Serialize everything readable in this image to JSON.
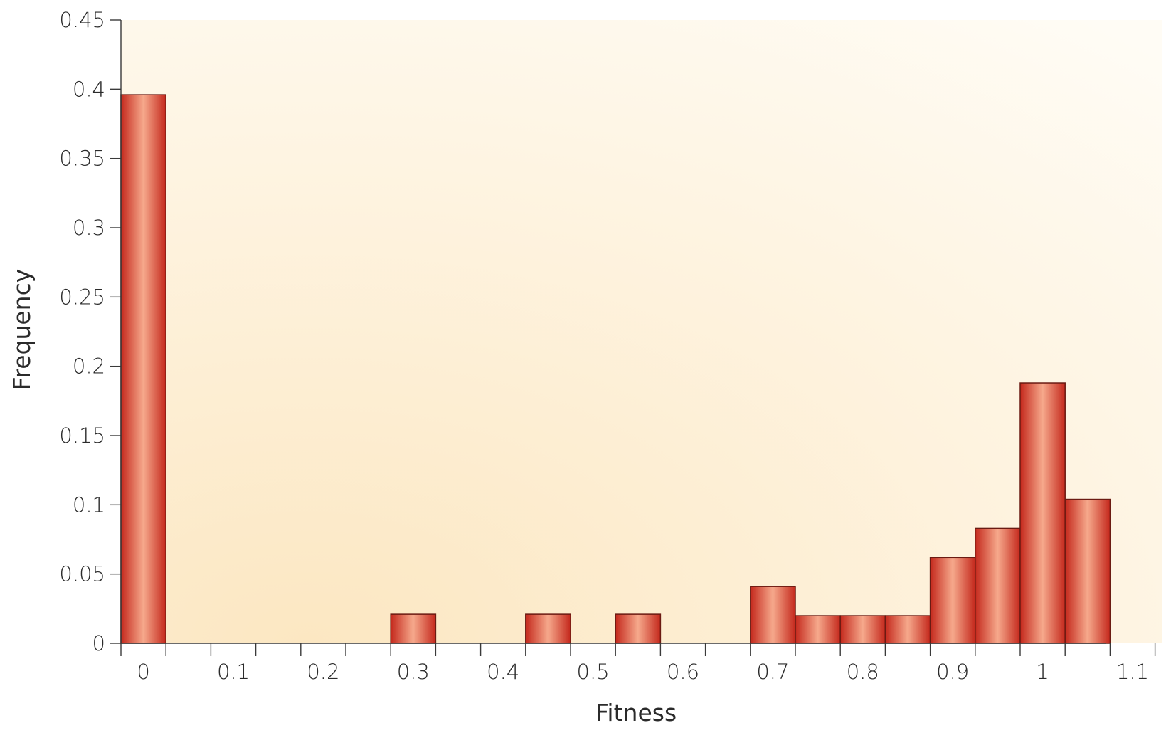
{
  "chart_data": {
    "type": "bar",
    "title": "",
    "xlabel": "Fitness",
    "ylabel": "Frequency",
    "xlim": [
      0,
      1.1
    ],
    "ylim": [
      0,
      0.45
    ],
    "x_ticks": [
      "0",
      "0.1",
      "0.2",
      "0.3",
      "0.4",
      "0.5",
      "0.6",
      "0.7",
      "0.8",
      "0.9",
      "1",
      "1.1"
    ],
    "y_ticks": [
      "0",
      "0.05",
      "0.1",
      "0.15",
      "0.2",
      "0.25",
      "0.3",
      "0.35",
      "0.4",
      "0.45"
    ],
    "bins": [
      {
        "start": 0.0,
        "end": 0.05,
        "value": 0.396
      },
      {
        "start": 0.3,
        "end": 0.35,
        "value": 0.021
      },
      {
        "start": 0.45,
        "end": 0.5,
        "value": 0.021
      },
      {
        "start": 0.55,
        "end": 0.6,
        "value": 0.021
      },
      {
        "start": 0.7,
        "end": 0.75,
        "value": 0.041
      },
      {
        "start": 0.75,
        "end": 0.8,
        "value": 0.02
      },
      {
        "start": 0.8,
        "end": 0.85,
        "value": 0.02
      },
      {
        "start": 0.85,
        "end": 0.9,
        "value": 0.02
      },
      {
        "start": 0.9,
        "end": 0.95,
        "value": 0.062
      },
      {
        "start": 0.95,
        "end": 1.0,
        "value": 0.083
      },
      {
        "start": 1.0,
        "end": 1.05,
        "value": 0.188
      },
      {
        "start": 1.05,
        "end": 1.1,
        "value": 0.104
      }
    ],
    "grid": false,
    "legend": "none",
    "colors": {
      "bar_edge": "#c4281c",
      "bar_center": "#f6a98c",
      "bar_stroke": "#6b1a12",
      "background_warm": "#fce7c2",
      "background_light": "#fffcf5",
      "axis": "#3a3a3a",
      "text": "#2b2b2b"
    }
  }
}
